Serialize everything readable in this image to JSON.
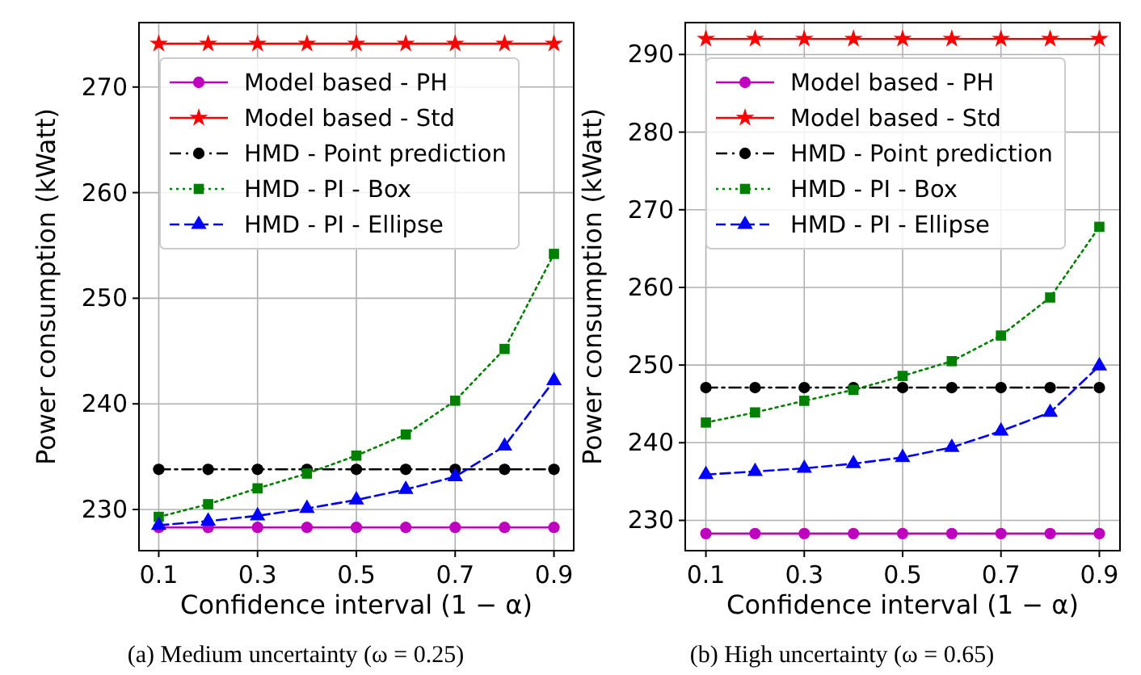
{
  "chart_data": [
    {
      "type": "line",
      "xlabel": "Confidence interval (1 − α)",
      "ylabel": "Power consumption (kWatt)",
      "annotations": [
        "(a) Medium uncertainty (ω = 0.25)"
      ],
      "x": [
        0.1,
        0.2,
        0.3,
        0.4,
        0.5,
        0.6,
        0.7,
        0.8,
        0.9
      ],
      "xlim": [
        0.06,
        0.94
      ],
      "xticks": [
        0.1,
        0.3,
        0.5,
        0.7,
        0.9
      ],
      "ylim": [
        226.1,
        276.1
      ],
      "yticks": [
        230,
        240,
        250,
        260,
        270
      ],
      "grid": true,
      "legend": "top left",
      "series": [
        {
          "name": "Model based - PH",
          "color": "#bf00bf",
          "marker": "circle",
          "line_style": "solid",
          "values": [
            228.3,
            228.3,
            228.3,
            228.3,
            228.3,
            228.3,
            228.3,
            228.3,
            228.3
          ]
        },
        {
          "name": "Model based - Std",
          "color": "#ff0000",
          "marker": "star",
          "line_style": "solid",
          "values": [
            274.1,
            274.1,
            274.1,
            274.1,
            274.1,
            274.1,
            274.1,
            274.1,
            274.1
          ]
        },
        {
          "name": "HMD - Point prediction",
          "color": "#000000",
          "marker": "circle",
          "line_style": "dashdot",
          "values": [
            233.8,
            233.8,
            233.8,
            233.8,
            233.8,
            233.8,
            233.8,
            233.8,
            233.8
          ]
        },
        {
          "name": "HMD - PI - Box",
          "color": "#008000",
          "marker": "square",
          "line_style": "dotted",
          "values": [
            229.3,
            230.5,
            232.0,
            233.4,
            235.1,
            237.1,
            240.3,
            245.2,
            254.2
          ]
        },
        {
          "name": "HMD - PI - Ellipse",
          "color": "#0000ff",
          "marker": "triangle",
          "line_style": "dashed",
          "values": [
            228.5,
            228.9,
            229.4,
            230.1,
            230.9,
            231.9,
            233.1,
            236.0,
            242.2
          ]
        }
      ]
    },
    {
      "type": "line",
      "xlabel": "Confidence interval (1 − α)",
      "ylabel": "Power consumption (kWatt)",
      "annotations": [
        "(b) High uncertainty (ω = 0.65)"
      ],
      "x": [
        0.1,
        0.2,
        0.3,
        0.4,
        0.5,
        0.6,
        0.7,
        0.8,
        0.9
      ],
      "xlim": [
        0.058,
        0.942
      ],
      "xticks": [
        0.1,
        0.3,
        0.5,
        0.7,
        0.9
      ],
      "ylim": [
        226.1,
        294.1
      ],
      "yticks": [
        230,
        240,
        250,
        260,
        270,
        280,
        290
      ],
      "grid": true,
      "legend": "top left",
      "series": [
        {
          "name": "Model based - PH",
          "color": "#bf00bf",
          "marker": "circle",
          "line_style": "solid",
          "values": [
            228.3,
            228.3,
            228.3,
            228.3,
            228.3,
            228.3,
            228.3,
            228.3,
            228.3
          ]
        },
        {
          "name": "Model based - Std",
          "color": "#ff0000",
          "marker": "star",
          "line_style": "solid",
          "values": [
            292.0,
            292.0,
            292.0,
            292.0,
            292.0,
            292.0,
            292.0,
            292.0,
            292.0
          ]
        },
        {
          "name": "HMD - Point prediction",
          "color": "#000000",
          "marker": "circle",
          "line_style": "dashdot",
          "values": [
            247.1,
            247.1,
            247.1,
            247.1,
            247.1,
            247.1,
            247.1,
            247.1,
            247.1
          ]
        },
        {
          "name": "HMD - PI - Box",
          "color": "#008000",
          "marker": "square",
          "line_style": "dotted",
          "values": [
            242.6,
            243.9,
            245.4,
            246.8,
            248.6,
            250.5,
            253.8,
            258.7,
            267.8
          ]
        },
        {
          "name": "HMD - PI - Ellipse",
          "color": "#0000ff",
          "marker": "triangle",
          "line_style": "dashed",
          "values": [
            235.9,
            236.3,
            236.7,
            237.3,
            238.1,
            239.4,
            241.5,
            243.9,
            249.9
          ]
        }
      ]
    }
  ]
}
